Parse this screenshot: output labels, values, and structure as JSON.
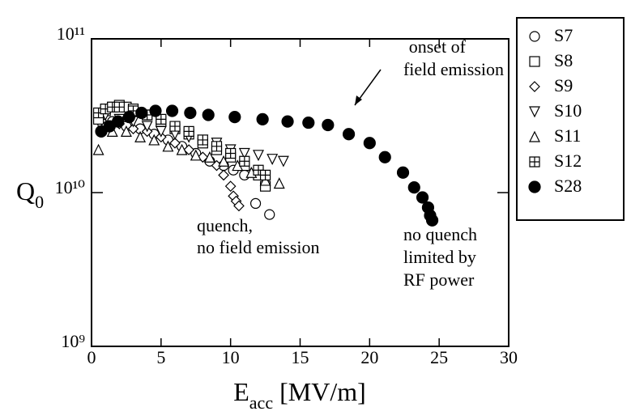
{
  "chart_data": {
    "type": "scatter",
    "xlabel": [
      "E",
      "acc",
      "[MV/m]"
    ],
    "ylabel": [
      "Q",
      "0"
    ],
    "xlim": [
      0,
      30
    ],
    "xticks": [
      0,
      5,
      10,
      15,
      20,
      25,
      30
    ],
    "ylim": [
      1000000000,
      100000000000
    ],
    "yscale": "log",
    "yticks": [
      {
        "value": 1000000000,
        "label": "10⁹"
      },
      {
        "value": 10000000000,
        "label": "10¹⁰"
      },
      {
        "value": 100000000000,
        "label": "10¹¹"
      }
    ],
    "legend": "outside-right",
    "series": [
      {
        "name": "S7",
        "marker": "circle",
        "color": "#000000",
        "x": [
          0.8,
          1.5,
          2.5,
          3.5,
          4.5,
          5.5,
          6.5,
          7.5,
          8.5,
          9.5,
          10.2,
          11,
          11.8,
          12.8
        ],
        "values": [
          28000000000,
          29000000000,
          27000000000,
          26000000000,
          24000000000,
          22000000000,
          20000000000,
          18000000000,
          16000000000,
          15000000000,
          14000000000,
          13000000000,
          8500000000,
          7200000000
        ]
      },
      {
        "name": "S8",
        "marker": "square",
        "color": "#000000",
        "x": [
          0.5,
          1,
          1.5,
          2,
          2.5,
          3,
          4,
          5,
          6,
          7,
          8,
          9,
          10,
          11,
          12,
          12.5
        ],
        "values": [
          30000000000,
          34000000000,
          36000000000,
          37000000000,
          36000000000,
          35000000000,
          32000000000,
          29000000000,
          26000000000,
          24000000000,
          21000000000,
          19000000000,
          17000000000,
          15000000000,
          13000000000,
          11000000000
        ]
      },
      {
        "name": "S9",
        "marker": "diamond",
        "color": "#000000",
        "x": [
          1,
          2,
          3,
          4,
          5,
          6,
          7,
          8,
          9,
          9.5,
          10,
          10.2,
          10.4,
          10.6
        ],
        "values": [
          27000000000,
          28000000000,
          26000000000,
          25000000000,
          23000000000,
          21000000000,
          19000000000,
          17000000000,
          15000000000,
          13000000000,
          11000000000,
          9500000000,
          8800000000,
          8200000000
        ]
      },
      {
        "name": "S10",
        "marker": "triangle-down",
        "color": "#000000",
        "x": [
          1,
          2,
          3,
          4,
          5,
          6,
          7,
          8,
          9,
          10,
          11,
          12,
          13,
          13.8
        ],
        "values": [
          32000000000,
          30000000000,
          29000000000,
          27000000000,
          25000000000,
          24000000000,
          23000000000,
          22000000000,
          21000000000,
          19000000000,
          18000000000,
          17500000000,
          16500000000,
          16000000000
        ]
      },
      {
        "name": "S11",
        "marker": "triangle-up",
        "color": "#000000",
        "x": [
          0.5,
          1.5,
          2.5,
          3.5,
          4.5,
          5.5,
          6.5,
          7.5,
          8.5,
          9.5,
          10.5,
          11.5,
          12.5,
          13.5
        ],
        "values": [
          19000000000,
          25000000000,
          25000000000,
          23000000000,
          22000000000,
          20000000000,
          19000000000,
          17500000000,
          17000000000,
          16000000000,
          15000000000,
          13500000000,
          12000000000,
          11500000000
        ]
      },
      {
        "name": "S12",
        "marker": "square-plus",
        "color": "#000000",
        "x": [
          0.5,
          1,
          1.5,
          2,
          3,
          4,
          5,
          6,
          7,
          8,
          9,
          10,
          11,
          12,
          12.5
        ],
        "values": [
          33000000000,
          35000000000,
          36000000000,
          36000000000,
          34000000000,
          32000000000,
          30000000000,
          27000000000,
          25000000000,
          22000000000,
          20000000000,
          18000000000,
          16000000000,
          14000000000,
          13000000000
        ]
      },
      {
        "name": "S28",
        "marker": "filled-circle",
        "color": "#000000",
        "x": [
          0.7,
          1.3,
          1.9,
          2.7,
          3.6,
          4.6,
          5.8,
          7.1,
          8.4,
          10.3,
          12.3,
          14.1,
          15.6,
          17.0,
          18.5,
          20.0,
          21.1,
          22.4,
          23.2,
          23.8,
          24.2,
          24.35,
          24.5
        ],
        "values": [
          25000000000,
          27000000000,
          29000000000,
          31000000000,
          33000000000,
          34000000000,
          34000000000,
          33000000000,
          32000000000,
          31000000000,
          30000000000,
          29000000000,
          28500000000,
          27500000000,
          24000000000,
          21000000000,
          17000000000,
          13500000000,
          10800000000,
          9300000000,
          8000000000,
          7100000000,
          6600000000
        ]
      }
    ],
    "annotations": [
      [
        "onset of",
        "field emission"
      ],
      [
        "quench,",
        "no field emission"
      ],
      [
        "no quench",
        "limited by",
        "RF power"
      ]
    ]
  }
}
